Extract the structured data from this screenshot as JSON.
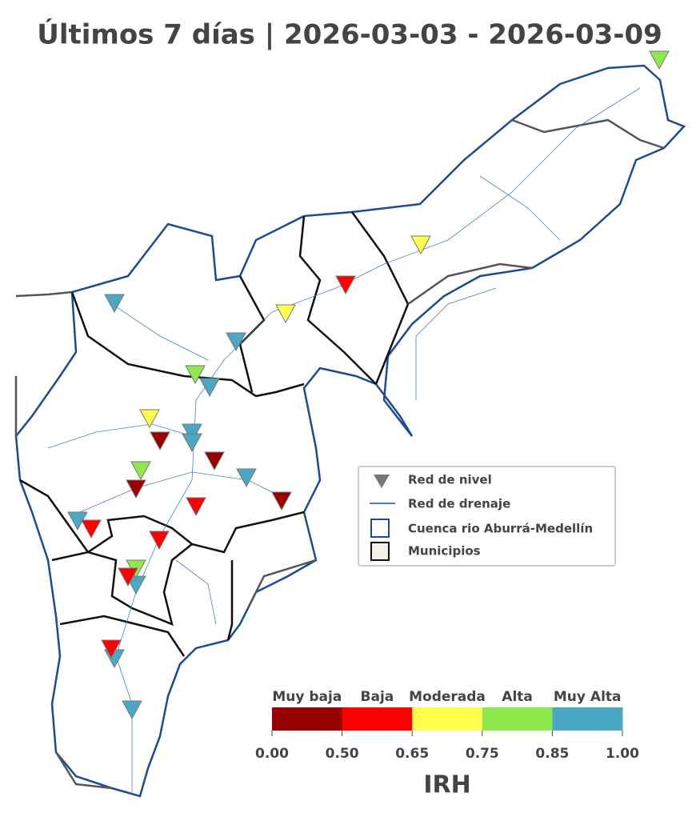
{
  "title": "Últimos 7 días | 2026-03-03 - 2026-03-09",
  "legend": {
    "items": [
      "Red de nivel",
      "Red de drenaje",
      "Cuenca rio Aburrá-Medellín",
      "Municipios"
    ]
  },
  "colorbar": {
    "label": "IRH",
    "categories": [
      {
        "name": "Muy baja",
        "color": "#990000"
      },
      {
        "name": "Baja",
        "color": "#ff0000"
      },
      {
        "name": "Moderada",
        "color": "#ffff4d"
      },
      {
        "name": "Alta",
        "color": "#8fe84d"
      },
      {
        "name": "Muy Alta",
        "color": "#4ba8c4"
      }
    ],
    "ticks": [
      {
        "value": 0,
        "label": "0.00"
      },
      {
        "value": 0.5,
        "label": "0.50"
      },
      {
        "value": 0.65,
        "label": "0.65"
      },
      {
        "value": 0.75,
        "label": "0.75"
      },
      {
        "value": 0.85,
        "label": "0.85"
      },
      {
        "value": 1,
        "label": "1.00"
      }
    ]
  }
}
